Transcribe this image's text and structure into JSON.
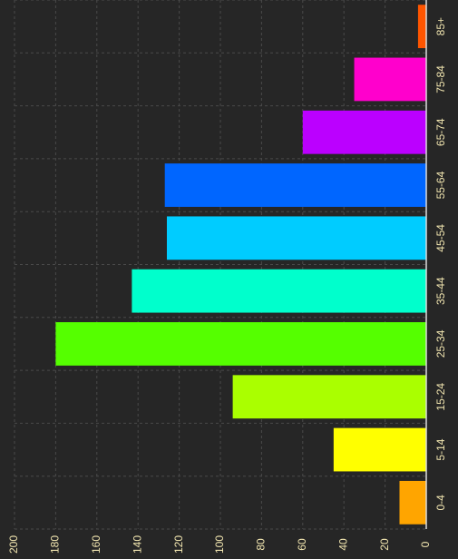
{
  "chart_data": {
    "type": "bar",
    "categories": [
      "0-4",
      "5-14",
      "15-24",
      "25-34",
      "35-44",
      "45-54",
      "55-64",
      "65-74",
      "75-84",
      "85+"
    ],
    "values": [
      13,
      45,
      94,
      180,
      143,
      126,
      127,
      60,
      35,
      4
    ],
    "colors": [
      "#ffa500",
      "#ffff00",
      "#aaff00",
      "#55ff00",
      "#00ffcc",
      "#00ccff",
      "#0066ff",
      "#bb00ff",
      "#ff00cc",
      "#ff5500"
    ],
    "ylim": [
      0,
      200
    ],
    "yticks": [
      0,
      20,
      40,
      60,
      80,
      100,
      120,
      140,
      160,
      180,
      200
    ],
    "grid": true
  }
}
